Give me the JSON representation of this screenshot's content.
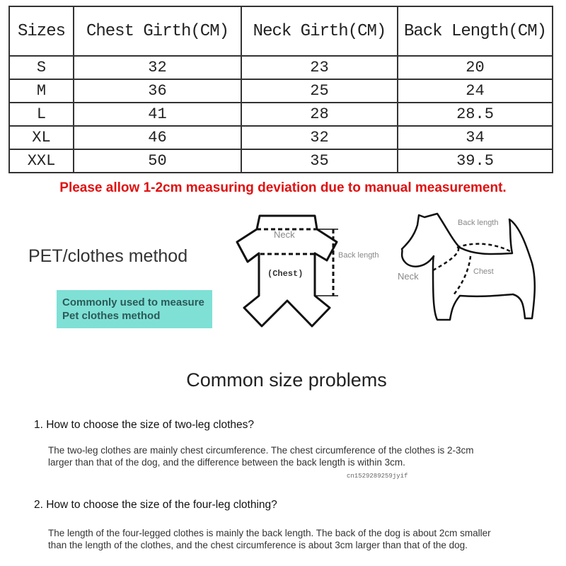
{
  "size_table": {
    "headers": [
      "Sizes",
      "Chest Girth(CM)",
      "Neck Girth(CM)",
      "Back Length(CM)"
    ],
    "rows": [
      [
        "S",
        "32",
        "23",
        "20"
      ],
      [
        "M",
        "36",
        "25",
        "24"
      ],
      [
        "L",
        "41",
        "28",
        "28.5"
      ],
      [
        "XL",
        "46",
        "32",
        "34"
      ],
      [
        "XXL",
        "50",
        "35",
        "39.5"
      ]
    ]
  },
  "note": "Please allow 1-2cm measuring deviation due to manual measurement.",
  "note_color": "#e01010",
  "method": {
    "title": "PET/clothes method",
    "badge_line1": "Commonly used to measure",
    "badge_line2": "Pet clothes method",
    "badge_color": "#7fe0d6",
    "clothes_labels": {
      "neck": "Neck",
      "chest": "(Chest)",
      "back": "Back length"
    },
    "dog_labels": {
      "back": "Back length",
      "neck": "Neck",
      "chest": "Chest"
    }
  },
  "faq": {
    "title": "Common size problems",
    "items": [
      {
        "q": "1. How to choose the size of two-leg clothes?",
        "a": "The two-leg clothes are mainly chest circumference. The chest circumference of the clothes is 2-3cm larger than that of the dog, and the difference between the back length is within 3cm."
      },
      {
        "q": "2. How to choose the size of the four-leg clothing?",
        "a": "The length of the four-legged clothes is mainly the back length. The back of the dog is about 2cm smaller than the length of the clothes, and the chest circumference is about 3cm larger than that of the dog."
      }
    ],
    "watermark": "cn1529289259jyif"
  }
}
